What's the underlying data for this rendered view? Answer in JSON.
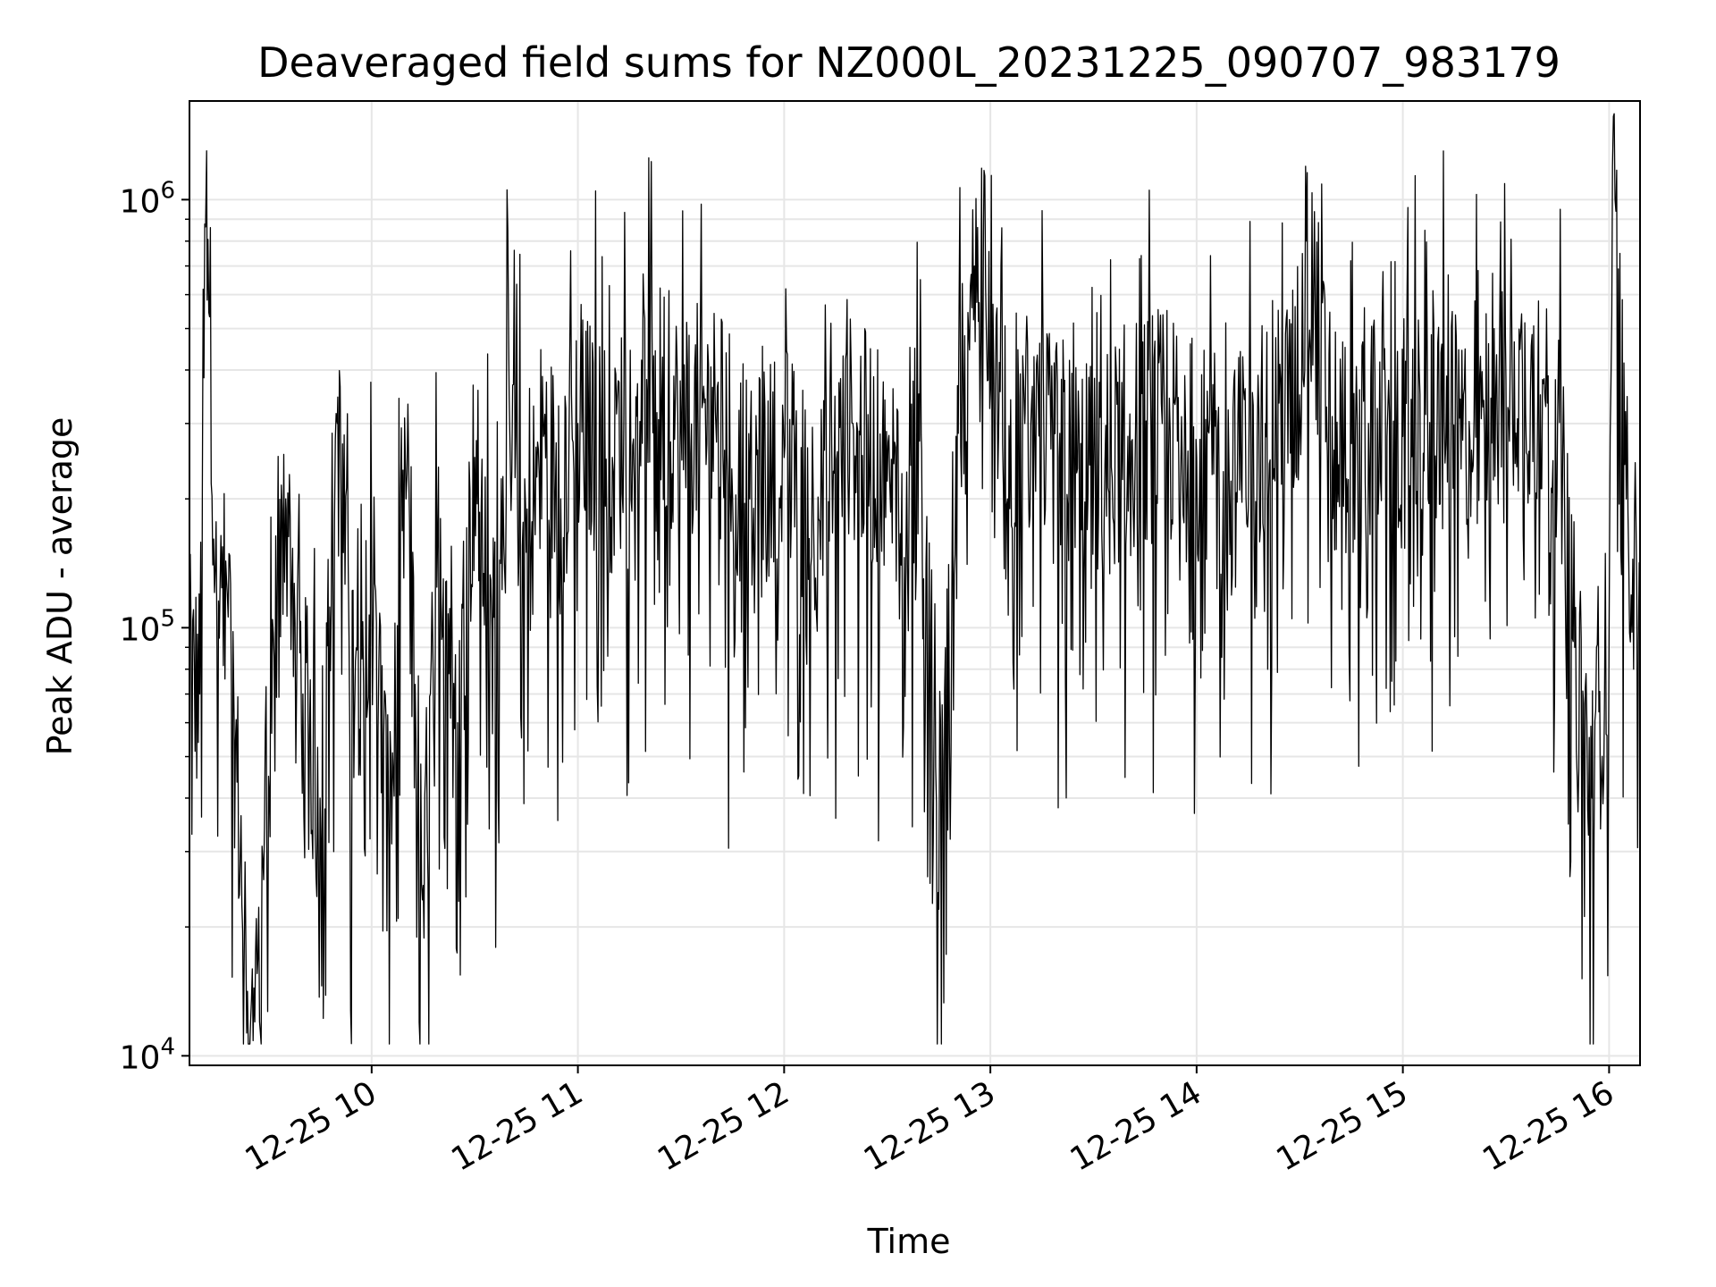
{
  "chart_data": {
    "type": "line",
    "title": "Deaveraged field sums for NZ000L_20231225_090707_983179",
    "xlabel": "Time",
    "ylabel": "Peak ADU - average",
    "yscale": "log",
    "ylim": [
      9500,
      1700000
    ],
    "xlim": [
      "2023-12-25 09:07",
      "2023-12-25 16:09"
    ],
    "grid": true,
    "legend": "none",
    "colors": {
      "line": "#000000",
      "grid": "#e6e6e6",
      "axes": "#000000",
      "background": "#ffffff"
    },
    "x_ticks": [
      {
        "t": "2023-12-25 10:00",
        "label": "12-25 10"
      },
      {
        "t": "2023-12-25 11:00",
        "label": "12-25 11"
      },
      {
        "t": "2023-12-25 12:00",
        "label": "12-25 12"
      },
      {
        "t": "2023-12-25 13:00",
        "label": "12-25 13"
      },
      {
        "t": "2023-12-25 14:00",
        "label": "12-25 14"
      },
      {
        "t": "2023-12-25 15:00",
        "label": "12-25 15"
      },
      {
        "t": "2023-12-25 16:00",
        "label": "12-25 16"
      }
    ],
    "y_ticks": [
      {
        "value": 10000,
        "base": "10",
        "exp": "4"
      },
      {
        "value": 100000,
        "base": "10",
        "exp": "5"
      },
      {
        "value": 1000000,
        "base": "10",
        "exp": "6"
      }
    ],
    "series": [
      {
        "x": [
          "2023-12-25 09:07",
          "2023-12-25 09:10",
          "2023-12-25 09:12",
          "2023-12-25 09:15",
          "2023-12-25 09:18",
          "2023-12-25 09:20",
          "2023-12-25 09:23",
          "2023-12-25 09:26",
          "2023-12-25 09:30",
          "2023-12-25 09:35",
          "2023-12-25 09:40",
          "2023-12-25 09:45",
          "2023-12-25 09:50",
          "2023-12-25 09:55",
          "2023-12-25 10:00",
          "2023-12-25 10:05",
          "2023-12-25 10:10",
          "2023-12-25 10:15",
          "2023-12-25 10:20",
          "2023-12-25 10:25",
          "2023-12-25 10:30",
          "2023-12-25 10:35",
          "2023-12-25 10:40",
          "2023-12-25 10:45",
          "2023-12-25 10:50",
          "2023-12-25 10:55",
          "2023-12-25 11:00",
          "2023-12-25 11:10",
          "2023-12-25 11:20",
          "2023-12-25 11:30",
          "2023-12-25 11:40",
          "2023-12-25 11:50",
          "2023-12-25 12:00",
          "2023-12-25 12:10",
          "2023-12-25 12:20",
          "2023-12-25 12:30",
          "2023-12-25 12:40",
          "2023-12-25 12:45",
          "2023-12-25 12:50",
          "2023-12-25 12:58",
          "2023-12-25 13:05",
          "2023-12-25 13:10",
          "2023-12-25 13:20",
          "2023-12-25 13:30",
          "2023-12-25 13:40",
          "2023-12-25 13:50",
          "2023-12-25 14:00",
          "2023-12-25 14:10",
          "2023-12-25 14:20",
          "2023-12-25 14:30",
          "2023-12-25 14:32",
          "2023-12-25 14:40",
          "2023-12-25 14:50",
          "2023-12-25 15:00",
          "2023-12-25 15:10",
          "2023-12-25 15:20",
          "2023-12-25 15:30",
          "2023-12-25 15:40",
          "2023-12-25 15:45",
          "2023-12-25 15:50",
          "2023-12-25 15:55",
          "2023-12-25 16:00",
          "2023-12-25 16:01",
          "2023-12-25 16:05",
          "2023-12-25 16:09"
        ],
        "y": [
          80000,
          70000,
          1300000,
          90000,
          120000,
          60000,
          20000,
          12000,
          45000,
          200000,
          70000,
          40000,
          300000,
          60000,
          150000,
          30000,
          200000,
          25000,
          180000,
          60000,
          250000,
          100000,
          350000,
          150000,
          280000,
          200000,
          300000,
          250000,
          380000,
          300000,
          320000,
          200000,
          250000,
          180000,
          300000,
          220000,
          260000,
          22000,
          280000,
          840000,
          200000,
          300000,
          250000,
          220000,
          280000,
          300000,
          250000,
          220000,
          300000,
          350000,
          800000,
          260000,
          300000,
          280000,
          320000,
          260000,
          380000,
          350000,
          300000,
          90000,
          40000,
          100000,
          1200000,
          200000,
          110000
        ]
      }
    ]
  }
}
